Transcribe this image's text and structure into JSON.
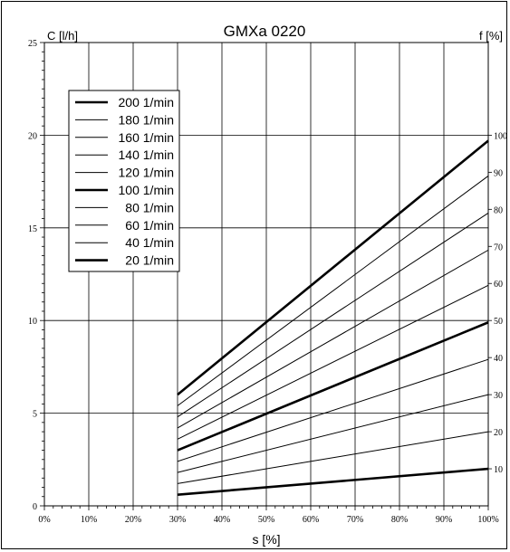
{
  "chart_data": {
    "type": "line",
    "title": "GMXa 0220",
    "xlabel": "s [%]",
    "ylabel": "C [l/h]",
    "y2label": "f [%]",
    "xlim": [
      0,
      100
    ],
    "ylim": [
      0,
      25
    ],
    "x_ticks": [
      0,
      10,
      20,
      30,
      40,
      50,
      60,
      70,
      80,
      90,
      100
    ],
    "x_tick_labels": [
      "0%",
      "10%",
      "20%",
      "30%",
      "40%",
      "50%",
      "60%",
      "70%",
      "80%",
      "90%",
      "100%"
    ],
    "y_ticks": [
      0,
      5,
      10,
      15,
      20,
      25
    ],
    "y_tick_labels": [
      "0",
      "5",
      "10",
      "15",
      "20",
      "25"
    ],
    "y2_ticks": [
      2,
      4,
      6,
      8,
      10,
      12,
      14,
      16,
      18,
      20
    ],
    "y2_tick_labels": [
      "10",
      "20",
      "30",
      "40",
      "50",
      "60",
      "70",
      "80",
      "90",
      "100"
    ],
    "grid": true,
    "legend_position": "top-left",
    "series": [
      {
        "name": "200 1/min",
        "bold": true,
        "x": [
          30,
          100
        ],
        "y": [
          6.0,
          19.7
        ]
      },
      {
        "name": "180 1/min",
        "bold": false,
        "x": [
          30,
          100
        ],
        "y": [
          5.4,
          17.8
        ]
      },
      {
        "name": "160 1/min",
        "bold": false,
        "x": [
          30,
          100
        ],
        "y": [
          4.8,
          15.8
        ]
      },
      {
        "name": "140 1/min",
        "bold": false,
        "x": [
          30,
          100
        ],
        "y": [
          4.2,
          13.8
        ]
      },
      {
        "name": "120 1/min",
        "bold": false,
        "x": [
          30,
          100
        ],
        "y": [
          3.6,
          11.9
        ]
      },
      {
        "name": "100 1/min",
        "bold": true,
        "x": [
          30,
          100
        ],
        "y": [
          3.0,
          9.9
        ]
      },
      {
        "name": "80 1/min",
        "bold": false,
        "x": [
          30,
          100
        ],
        "y": [
          2.4,
          7.9
        ]
      },
      {
        "name": "60 1/min",
        "bold": false,
        "x": [
          30,
          100
        ],
        "y": [
          1.8,
          6.0
        ]
      },
      {
        "name": "40 1/min",
        "bold": false,
        "x": [
          30,
          100
        ],
        "y": [
          1.2,
          4.0
        ]
      },
      {
        "name": "20 1/min",
        "bold": true,
        "x": [
          30,
          100
        ],
        "y": [
          0.6,
          2.0
        ]
      }
    ]
  }
}
